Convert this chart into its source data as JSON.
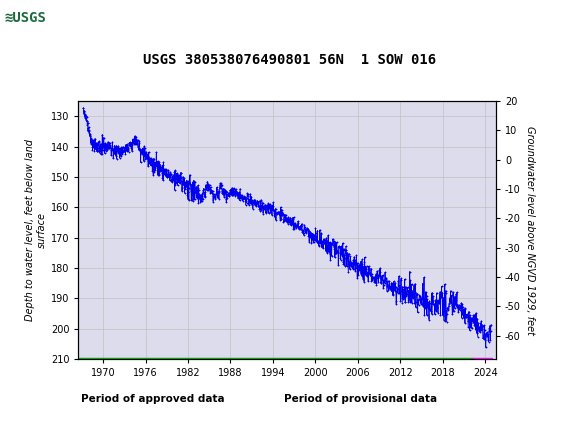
{
  "title": "USGS 380538076490801 56N  1 SOW 016",
  "ylabel_left": "Depth to water level, feet below land\nsurface",
  "ylabel_right": "Groundwater level above NGVD 1929, feet",
  "ylim_left": [
    210,
    125
  ],
  "ylim_right": [
    -68,
    20
  ],
  "xlim": [
    1966.5,
    2025.5
  ],
  "yticks_left": [
    130,
    140,
    150,
    160,
    170,
    180,
    190,
    200,
    210
  ],
  "yticks_right": [
    -60,
    -50,
    -40,
    -30,
    -20,
    -10,
    0,
    10,
    20
  ],
  "xticks": [
    1970,
    1976,
    1982,
    1988,
    1994,
    2000,
    2006,
    2012,
    2018,
    2024
  ],
  "header_color": "#1a6b3c",
  "line_color": "#0000ee",
  "grid_color": "#c0c0c0",
  "plot_bg_color": "#dcdcec",
  "approved_color": "#00aa00",
  "provisional_color": "#ff00ff",
  "legend_items": [
    "Period of approved data",
    "Period of provisional data"
  ],
  "legend_colors": [
    "#00aa00",
    "#ff00ff"
  ],
  "approved_periods": [
    [
      1966.5,
      2022.3
    ]
  ],
  "provisional_periods": [
    [
      2022.3,
      2025.0
    ]
  ]
}
